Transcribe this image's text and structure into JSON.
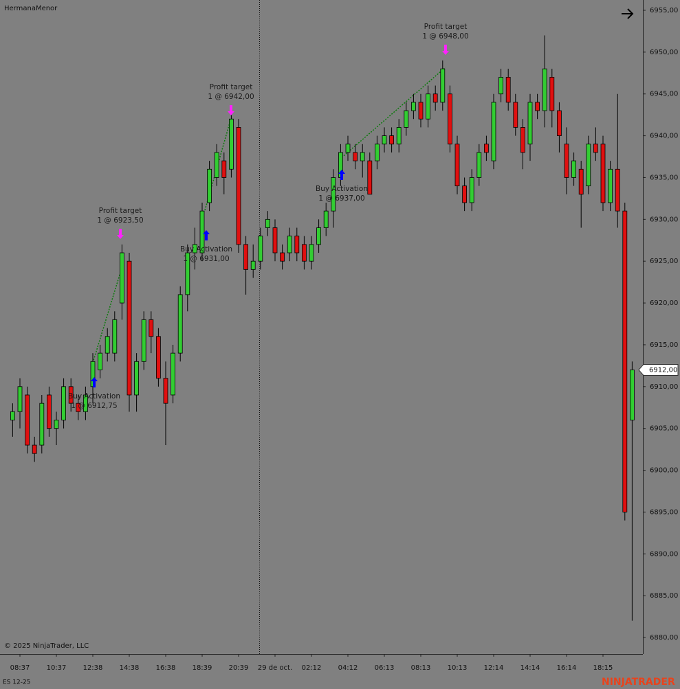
{
  "chart_data": {
    "type": "candlestick",
    "title": "HermanaMenor",
    "instrument": "ES 12-25",
    "copyright": "© 2025 NinjaTrader, LLC",
    "brand": "NINJATRADER",
    "up_color": "#32cd32",
    "down_color": "#e01010",
    "categories": [
      null,
      "08:37",
      null,
      null,
      null,
      null,
      "10:37",
      null,
      null,
      null,
      null,
      "12:38",
      null,
      null,
      null,
      null,
      "14:38",
      null,
      null,
      null,
      null,
      "16:38",
      null,
      null,
      null,
      null,
      "18:39",
      null,
      null,
      null,
      null,
      "20:39",
      null,
      null,
      null,
      null,
      "29 de oct.",
      null,
      null,
      null,
      null,
      "02:12",
      null,
      null,
      null,
      null,
      "04:12",
      null,
      null,
      null,
      null,
      "06:13",
      null,
      null,
      null,
      null,
      "08:13",
      null,
      null,
      null,
      null,
      "10:13",
      null,
      null,
      null,
      null,
      "12:14",
      null,
      null,
      null,
      null,
      "14:14",
      null,
      null,
      null,
      null,
      "16:14",
      null,
      null,
      null,
      null,
      "18:15",
      null,
      null,
      null,
      null
    ],
    "open": [
      6906,
      6907,
      6909,
      6903,
      6903,
      6909,
      6905,
      6906,
      6910,
      6908,
      6907,
      6910,
      6912,
      6914,
      6914,
      6920,
      6925,
      6909,
      6913,
      6918,
      6916,
      6911,
      6909,
      6914,
      6921,
      6926,
      6926,
      6932,
      6935,
      6937,
      6936,
      6941,
      6927,
      6924,
      6925,
      6929,
      6929,
      6926,
      6926,
      6928,
      6927,
      6925,
      6927,
      6929,
      6931,
      6935,
      6938,
      6938,
      6937,
      6937,
      6937,
      6939,
      6940,
      6939,
      6941,
      6943,
      6944,
      6942,
      6945,
      6944,
      6945,
      6939,
      6934,
      6932,
      6935,
      6939,
      6937,
      6945,
      6947,
      6944,
      6941,
      6939,
      6944,
      6943,
      6947,
      6943,
      6939,
      6935,
      6936,
      6934,
      6939,
      6939,
      6932,
      6936,
      6931,
      6906
    ],
    "high": [
      6908,
      6911,
      6910,
      6904,
      6909,
      6910,
      6907,
      6911,
      6911,
      6909,
      6910,
      6914,
      6915,
      6917,
      6919,
      6927,
      6926,
      6914,
      6919,
      6919,
      6917,
      6913,
      6915,
      6922,
      6927,
      6929,
      6932,
      6937,
      6939,
      6938,
      6943,
      6942,
      6928,
      6927,
      6929,
      6931,
      6930,
      6927,
      6929,
      6929,
      6928,
      6928,
      6930,
      6932,
      6936,
      6939,
      6940,
      6939,
      6939,
      6938,
      6940,
      6941,
      6941,
      6942,
      6944,
      6945,
      6945,
      6946,
      6946,
      6949,
      6946,
      6940,
      6935,
      6936,
      6939,
      6940,
      6945,
      6948,
      6948,
      6945,
      6942,
      6945,
      6945,
      6952,
      6948,
      6944,
      6941,
      6938,
      6937,
      6940,
      6941,
      6940,
      6937,
      6945,
      6932,
      6913
    ],
    "low": [
      6904,
      6905,
      6902,
      6901,
      6902,
      6904,
      6903,
      6905,
      6907,
      6906,
      6906,
      6908,
      6911,
      6913,
      6913,
      6918,
      6907,
      6907,
      6912,
      6914,
      6910,
      6903,
      6908,
      6913,
      6919,
      6924,
      6925,
      6931,
      6934,
      6933,
      6935,
      6926,
      6921,
      6923,
      6924,
      6928,
      6925,
      6924,
      6925,
      6925,
      6924,
      6924,
      6926,
      6928,
      6929,
      6934,
      6937,
      6936,
      6935,
      6933,
      6936,
      6938,
      6938,
      6938,
      6940,
      6942,
      6941,
      6941,
      6943,
      6943,
      6938,
      6933,
      6931,
      6931,
      6934,
      6937,
      6936,
      6944,
      6943,
      6940,
      6936,
      6937,
      6942,
      6941,
      6941,
      6938,
      6933,
      6934,
      6929,
      6933,
      6937,
      6931,
      6931,
      6929,
      6894,
      6882
    ],
    "close": [
      6907,
      6910,
      6903,
      6902,
      6908,
      6905,
      6906,
      6910,
      6908,
      6907,
      6909,
      6913,
      6914,
      6916,
      6918,
      6926,
      6909,
      6913,
      6918,
      6916,
      6911,
      6908,
      6914,
      6921,
      6926,
      6927,
      6931,
      6936,
      6938,
      6935,
      6942,
      6927,
      6924,
      6925,
      6928,
      6930,
      6926,
      6925,
      6928,
      6926,
      6925,
      6927,
      6929,
      6931,
      6935,
      6938,
      6939,
      6937,
      6938,
      6933,
      6939,
      6940,
      6939,
      6941,
      6943,
      6944,
      6942,
      6945,
      6944,
      6948,
      6939,
      6934,
      6932,
      6935,
      6938,
      6938,
      6944,
      6947,
      6944,
      6941,
      6938,
      6944,
      6943,
      6948,
      6943,
      6940,
      6935,
      6937,
      6933,
      6939,
      6938,
      6932,
      6936,
      6931,
      6895,
      6912
    ],
    "last_price": {
      "value": 6912,
      "label": "6912,00"
    },
    "ylim": [
      6880,
      6955
    ],
    "yticks": [
      {
        "value": 6955,
        "label": "6955,00"
      },
      {
        "value": 6950,
        "label": "6950,00"
      },
      {
        "value": 6945,
        "label": "6945,00"
      },
      {
        "value": 6940,
        "label": "6940,00"
      },
      {
        "value": 6935,
        "label": "6935,00"
      },
      {
        "value": 6930,
        "label": "6930,00"
      },
      {
        "value": 6925,
        "label": "6925,00"
      },
      {
        "value": 6920,
        "label": "6920,00"
      },
      {
        "value": 6915,
        "label": "6915,00"
      },
      {
        "value": 6910,
        "label": "6910,00"
      },
      {
        "value": 6905,
        "label": "6905,00"
      },
      {
        "value": 6900,
        "label": "6900,00"
      },
      {
        "value": 6895,
        "label": "6895,00"
      },
      {
        "value": 6890,
        "label": "6890,00"
      },
      {
        "value": 6885,
        "label": "6885,00"
      },
      {
        "value": 6880,
        "label": "6880,00"
      }
    ],
    "annotations": [
      {
        "label": "Buy Activation",
        "detail": "1 @ 6912,75"
      },
      {
        "label": "Profit target",
        "detail": "1 @ 6923,50"
      },
      {
        "label": "Buy Activation",
        "detail": "1 @ 6931,00"
      },
      {
        "label": "Profit target",
        "detail": "1 @ 6942,00"
      },
      {
        "label": "Buy Activation",
        "detail": "1 @ 6937,00"
      },
      {
        "label": "Profit target",
        "detail": "1 @ 6948,00"
      }
    ]
  }
}
